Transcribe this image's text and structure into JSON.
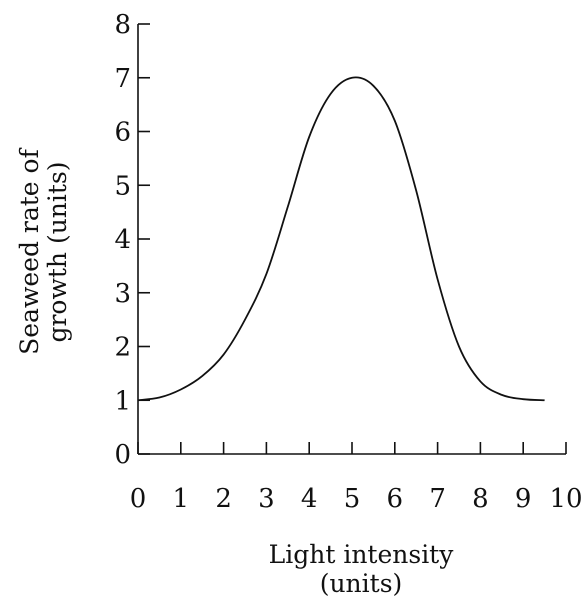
{
  "chart_data": {
    "type": "line",
    "title": "",
    "xlabel_lines": [
      "Light intensity",
      "(units)"
    ],
    "ylabel_lines": [
      "Seaweed rate of",
      "growth (units)"
    ],
    "xlim": [
      0,
      10
    ],
    "ylim": [
      0,
      8
    ],
    "xticks": [
      0,
      1,
      2,
      3,
      4,
      5,
      6,
      7,
      8,
      9,
      10
    ],
    "yticks": [
      0,
      1,
      2,
      3,
      4,
      5,
      6,
      7,
      8
    ],
    "grid": false,
    "series": [
      {
        "x": [
          0,
          0.5,
          1,
          1.5,
          2,
          2.5,
          3,
          3.5,
          4,
          4.5,
          5,
          5.5,
          6,
          6.5,
          7,
          7.5,
          8,
          8.5,
          9,
          9.5
        ],
        "y": [
          1.0,
          1.05,
          1.2,
          1.45,
          1.85,
          2.5,
          3.35,
          4.6,
          5.9,
          6.7,
          7.0,
          6.85,
          6.2,
          4.9,
          3.25,
          2.0,
          1.35,
          1.1,
          1.02,
          1.0
        ]
      }
    ],
    "colors": {
      "line": "#111111",
      "axis": "#111111",
      "text": "#111111"
    }
  }
}
